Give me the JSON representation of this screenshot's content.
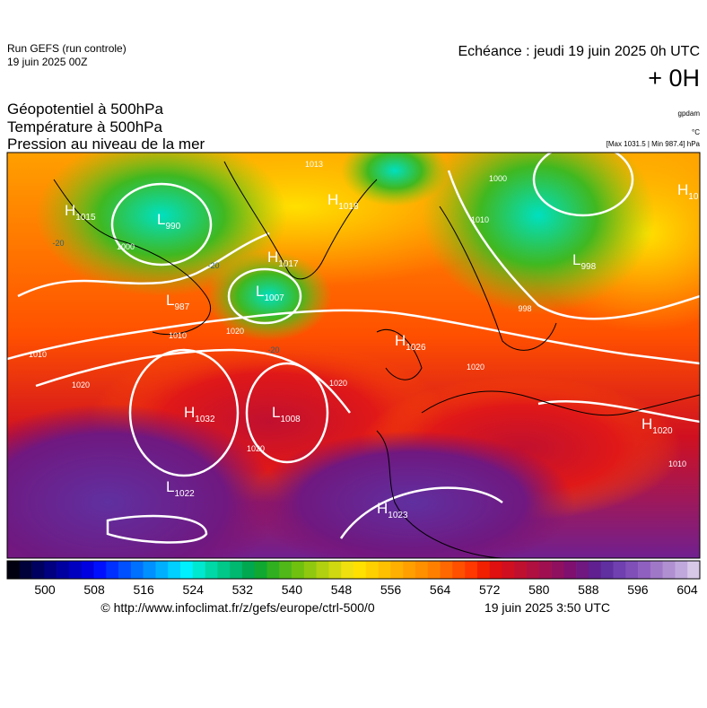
{
  "header": {
    "run": "Run GEFS (run controle)",
    "run_date": "19 juin 2025 00Z",
    "echeance": "Echéance : jeudi 19 juin 2025 0h UTC",
    "offset": "+ 0H",
    "titles": [
      "Géopotentiel à 500hPa",
      "Température à 500hPa",
      "Pression au niveau de la mer"
    ],
    "unit_geopotential": "gpdam",
    "unit_temperature": "°C",
    "pressure_range": "[Max 1031.5 | Min 987.4] hPa"
  },
  "map": {
    "centers": [
      {
        "kind": "H",
        "value": "1015"
      },
      {
        "kind": "L",
        "value": "990"
      },
      {
        "kind": "L",
        "value": "987"
      },
      {
        "kind": "L",
        "value": "1007"
      },
      {
        "kind": "H",
        "value": "1017"
      },
      {
        "kind": "H",
        "value": "1018"
      },
      {
        "kind": "L",
        "value": "998"
      },
      {
        "kind": "H",
        "value": "10"
      },
      {
        "kind": "H",
        "value": "1026"
      },
      {
        "kind": "H",
        "value": "1032"
      },
      {
        "kind": "L",
        "value": "1008"
      },
      {
        "kind": "L",
        "value": "1022"
      },
      {
        "kind": "H",
        "value": "1023"
      },
      {
        "kind": "H",
        "value": "1020"
      }
    ],
    "contour_labels": [
      "1013",
      "1010",
      "1010",
      "1020",
      "1020",
      "1020",
      "1020",
      "1000",
      "1000",
      "1010",
      "1020",
      "1010",
      "998",
      "-20",
      "-20",
      "-20"
    ]
  },
  "colorbar": {
    "ticks": [
      500,
      508,
      516,
      524,
      532,
      540,
      548,
      556,
      564,
      572,
      580,
      588,
      596,
      604
    ],
    "colors": [
      "#000010",
      "#00003a",
      "#000060",
      "#000080",
      "#0000a0",
      "#0000c0",
      "#0000e0",
      "#0010ff",
      "#0030ff",
      "#0050ff",
      "#0070ff",
      "#0090ff",
      "#00b0ff",
      "#00d0ff",
      "#00f0ff",
      "#00e8d0",
      "#00d8a8",
      "#00c888",
      "#00b870",
      "#00a850",
      "#10a830",
      "#30b020",
      "#50b818",
      "#70c010",
      "#90c810",
      "#b0d010",
      "#d0d810",
      "#f0e010",
      "#ffe000",
      "#ffd000",
      "#ffc000",
      "#ffb000",
      "#ffa000",
      "#ff9000",
      "#ff8000",
      "#ff6800",
      "#ff5000",
      "#ff3800",
      "#f02000",
      "#e01010",
      "#d01020",
      "#c01030",
      "#b01040",
      "#a01050",
      "#901060",
      "#801070",
      "#701880",
      "#602090",
      "#6030a0",
      "#7040b0",
      "#8050b8",
      "#9060c0",
      "#a078c8",
      "#b090d0",
      "#c0a8dc",
      "#d8c8e8"
    ]
  },
  "footer": {
    "url": "© http://www.infoclimat.fr/z/gefs/europe/ctrl-500/0",
    "timestamp": "19 juin 2025  3:50 UTC"
  }
}
